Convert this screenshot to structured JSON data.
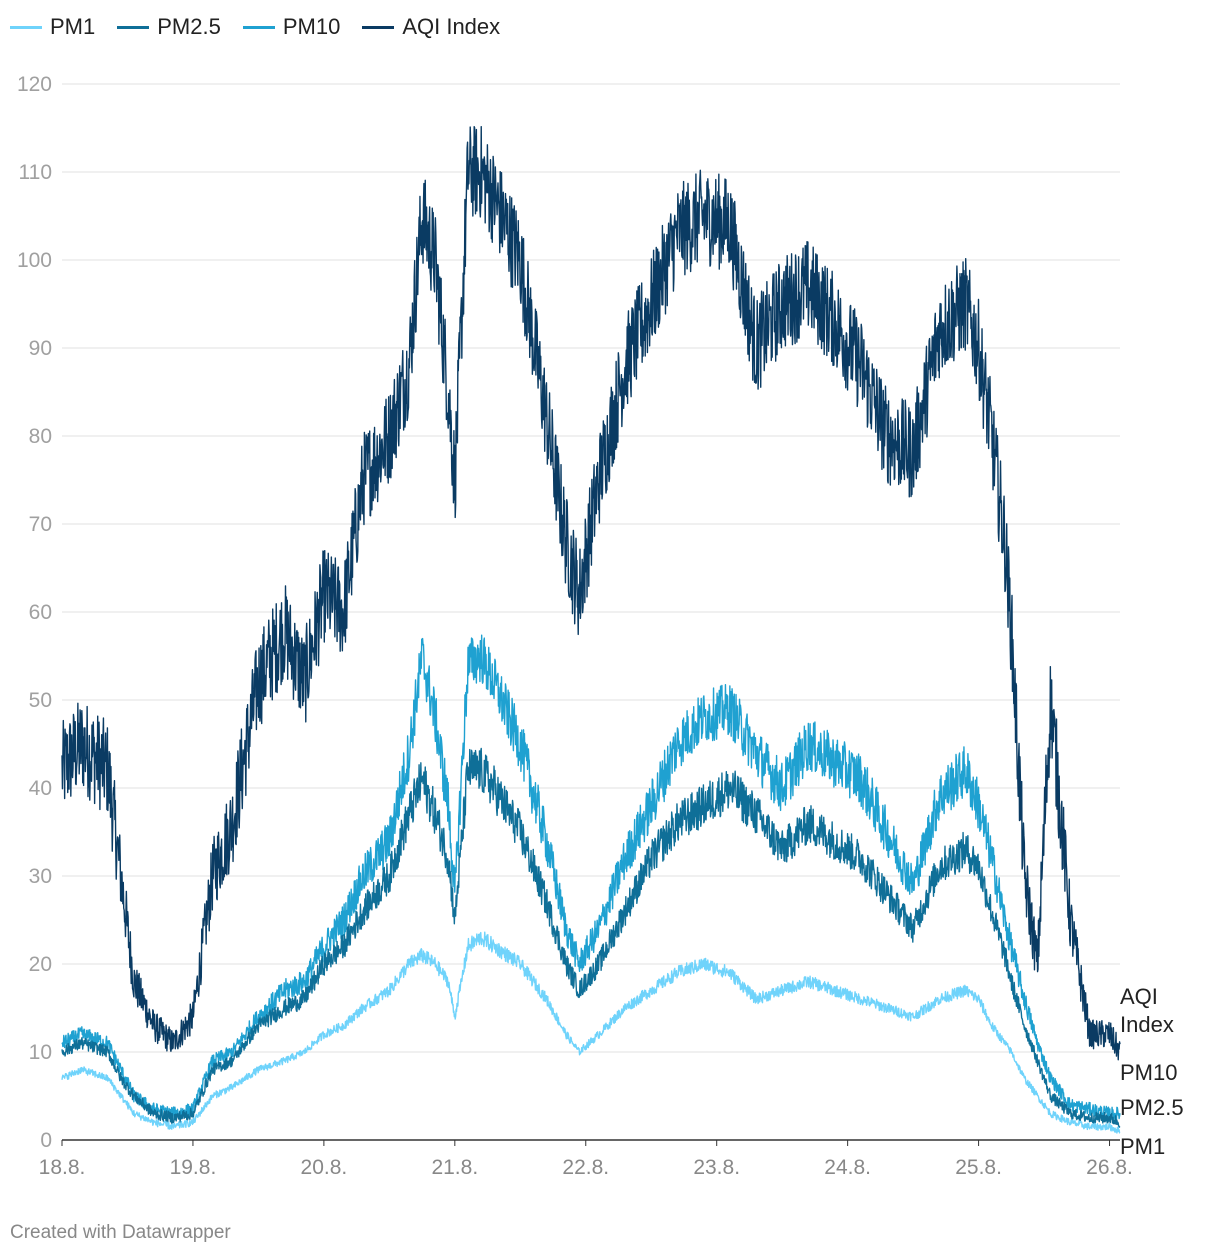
{
  "chart_data": {
    "type": "line",
    "title": "",
    "xlabel": "",
    "ylabel": "",
    "ylim": [
      0,
      120
    ],
    "yticks": [
      0,
      10,
      20,
      30,
      40,
      50,
      60,
      70,
      80,
      90,
      100,
      110,
      120
    ],
    "x_range": [
      18,
      26.08
    ],
    "x_ticks": [
      {
        "value": 18,
        "label": "18.8."
      },
      {
        "value": 19,
        "label": "19.8."
      },
      {
        "value": 20,
        "label": "20.8."
      },
      {
        "value": 21,
        "label": "21.8."
      },
      {
        "value": 22,
        "label": "22.8."
      },
      {
        "value": 23,
        "label": "23.8."
      },
      {
        "value": 24,
        "label": "24.8."
      },
      {
        "value": 25,
        "label": "25.8."
      },
      {
        "value": 26,
        "label": "26.8."
      }
    ],
    "x_unit": "day of August",
    "series": [
      {
        "name": "PM1",
        "color": "#6fd3fb",
        "end_label": "PM1",
        "noise": 1.6,
        "x": [
          18.0,
          18.15,
          18.35,
          18.45,
          18.55,
          18.7,
          18.85,
          19.0,
          19.15,
          19.3,
          19.5,
          19.7,
          19.85,
          20.0,
          20.15,
          20.3,
          20.5,
          20.65,
          20.75,
          20.85,
          20.95,
          21.0,
          21.1,
          21.2,
          21.3,
          21.5,
          21.7,
          21.85,
          21.95,
          22.1,
          22.3,
          22.5,
          22.7,
          22.9,
          23.1,
          23.3,
          23.5,
          23.7,
          23.9,
          24.1,
          24.3,
          24.5,
          24.7,
          24.9,
          25.0,
          25.1,
          25.2,
          25.25,
          25.35,
          25.45,
          25.55,
          25.7,
          25.85,
          26.0,
          26.08
        ],
        "y": [
          7,
          8,
          7,
          5,
          3,
          2,
          1.5,
          2,
          5,
          6,
          8,
          9,
          10,
          12,
          13,
          15,
          17,
          20,
          21,
          20,
          18,
          14,
          22,
          23,
          22,
          20,
          16,
          12,
          10,
          12,
          15,
          17,
          19,
          20,
          19,
          16,
          17,
          18,
          17,
          16,
          15,
          14,
          16,
          17,
          16,
          13,
          11,
          10,
          7,
          5,
          3,
          2,
          1.5,
          1.5,
          1
        ]
      },
      {
        "name": "PM2.5",
        "color": "#0f6f98",
        "end_label": "PM2.5",
        "noise": 2.6,
        "x": [
          18.0,
          18.15,
          18.35,
          18.45,
          18.55,
          18.7,
          18.85,
          19.0,
          19.15,
          19.3,
          19.5,
          19.7,
          19.85,
          20.0,
          20.15,
          20.3,
          20.5,
          20.65,
          20.75,
          20.85,
          20.95,
          21.0,
          21.1,
          21.2,
          21.3,
          21.5,
          21.7,
          21.85,
          21.95,
          22.1,
          22.3,
          22.5,
          22.7,
          22.9,
          23.1,
          23.3,
          23.5,
          23.7,
          23.9,
          24.1,
          24.3,
          24.5,
          24.7,
          24.9,
          25.0,
          25.1,
          25.2,
          25.25,
          25.35,
          25.45,
          25.55,
          25.7,
          25.85,
          26.0,
          26.08
        ],
        "y": [
          10,
          11,
          10,
          7,
          5,
          3,
          2.5,
          3,
          8,
          9,
          13,
          15,
          16,
          20,
          22,
          26,
          30,
          37,
          41,
          37,
          32,
          25,
          42,
          42,
          40,
          35,
          27,
          20,
          17,
          20,
          26,
          32,
          36,
          38,
          40,
          37,
          33,
          36,
          34,
          32,
          28,
          24,
          31,
          33,
          31,
          26,
          21,
          18,
          13,
          9,
          5,
          3,
          2.5,
          2.5,
          2
        ]
      },
      {
        "name": "PM10",
        "color": "#1fa1d1",
        "end_label": "PM10",
        "noise": 3.0,
        "x": [
          18.0,
          18.15,
          18.35,
          18.45,
          18.55,
          18.7,
          18.85,
          19.0,
          19.15,
          19.3,
          19.5,
          19.7,
          19.85,
          20.0,
          20.15,
          20.3,
          20.5,
          20.65,
          20.75,
          20.85,
          20.95,
          21.0,
          21.1,
          21.2,
          21.3,
          21.5,
          21.7,
          21.85,
          21.95,
          22.1,
          22.3,
          22.5,
          22.7,
          22.9,
          23.1,
          23.3,
          23.5,
          23.7,
          23.9,
          24.1,
          24.3,
          24.5,
          24.7,
          24.9,
          25.0,
          25.1,
          25.2,
          25.25,
          25.35,
          25.45,
          25.55,
          25.7,
          25.85,
          26.0,
          26.08
        ],
        "y": [
          11,
          12,
          11,
          8,
          5,
          3.5,
          3,
          3.5,
          9,
          10,
          14,
          17,
          18,
          22,
          25,
          30,
          34,
          44,
          55,
          48,
          38,
          28,
          54,
          55,
          52,
          45,
          34,
          24,
          20,
          24,
          32,
          38,
          45,
          48,
          49,
          44,
          40,
          45,
          43,
          41,
          35,
          29,
          39,
          42,
          38,
          32,
          25,
          22,
          16,
          11,
          7,
          4,
          3.5,
          3,
          3
        ]
      },
      {
        "name": "AQI Index",
        "color": "#0a3b63",
        "end_label": "AQI Index",
        "noise": 5.5,
        "x": [
          18.0,
          18.15,
          18.35,
          18.45,
          18.55,
          18.7,
          18.85,
          19.0,
          19.15,
          19.3,
          19.5,
          19.7,
          19.85,
          20.0,
          20.15,
          20.3,
          20.5,
          20.65,
          20.75,
          20.85,
          20.95,
          21.0,
          21.1,
          21.2,
          21.3,
          21.5,
          21.7,
          21.85,
          21.95,
          22.1,
          22.3,
          22.5,
          22.7,
          22.9,
          23.1,
          23.3,
          23.5,
          23.7,
          23.9,
          24.1,
          24.3,
          24.5,
          24.7,
          24.9,
          25.0,
          25.1,
          25.2,
          25.25,
          25.35,
          25.45,
          25.55,
          25.7,
          25.85,
          26.0,
          26.08
        ],
        "y": [
          42,
          45,
          42,
          30,
          18,
          13,
          11,
          14,
          30,
          36,
          52,
          58,
          52,
          62,
          60,
          75,
          80,
          88,
          105,
          100,
          85,
          75,
          110,
          110,
          107,
          100,
          82,
          68,
          62,
          75,
          88,
          95,
          103,
          105,
          104,
          90,
          95,
          97,
          93,
          88,
          80,
          78,
          92,
          95,
          90,
          80,
          68,
          58,
          30,
          20,
          50,
          25,
          12,
          12,
          10
        ]
      }
    ],
    "source": "Created with Datawrapper"
  }
}
